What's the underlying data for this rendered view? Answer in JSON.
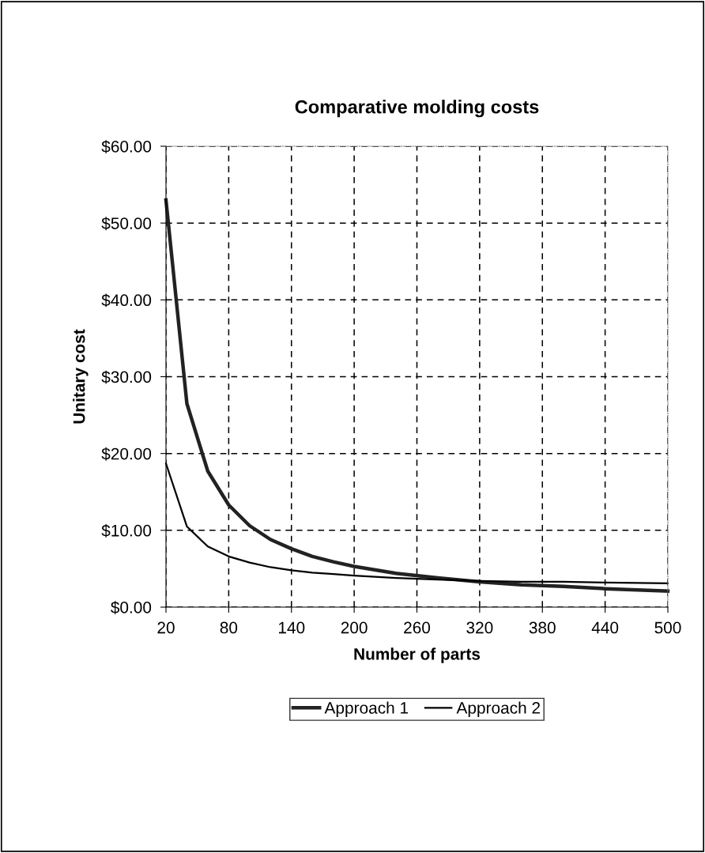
{
  "chart_data": {
    "type": "line",
    "title": "Comparative molding costs",
    "xlabel": "Number of parts",
    "ylabel": "Unitary cost",
    "x": [
      20,
      40,
      60,
      80,
      100,
      120,
      140,
      160,
      180,
      200,
      240,
      280,
      320,
      360,
      400,
      440,
      500
    ],
    "series": [
      {
        "name": "Approach 1",
        "color": "#222222",
        "values": [
          53,
          26.5,
          17.7,
          13.3,
          10.6,
          8.8,
          7.6,
          6.6,
          5.9,
          5.3,
          4.4,
          3.8,
          3.3,
          2.9,
          2.7,
          2.4,
          2.1
        ]
      },
      {
        "name": "Approach 2",
        "color": "#000000",
        "values": [
          18.7,
          10.5,
          7.9,
          6.6,
          5.8,
          5.2,
          4.8,
          4.5,
          4.3,
          4.1,
          3.8,
          3.6,
          3.4,
          3.3,
          3.3,
          3.2,
          3.1
        ]
      }
    ],
    "xlim": [
      20,
      500
    ],
    "xticks": [
      20,
      80,
      140,
      200,
      260,
      320,
      380,
      440,
      500
    ],
    "ylim": [
      0,
      60
    ],
    "yticks": [
      {
        "value": 0,
        "label": "$0.00"
      },
      {
        "value": 10,
        "label": "$10.00"
      },
      {
        "value": 20,
        "label": "$20.00"
      },
      {
        "value": 30,
        "label": "$30.00"
      },
      {
        "value": 40,
        "label": "$40.00"
      },
      {
        "value": 50,
        "label": "$50.00"
      },
      {
        "value": 60,
        "label": "$60.00"
      }
    ],
    "grid": true,
    "legend": "bottom",
    "line_style": "solid",
    "marker": "none"
  }
}
